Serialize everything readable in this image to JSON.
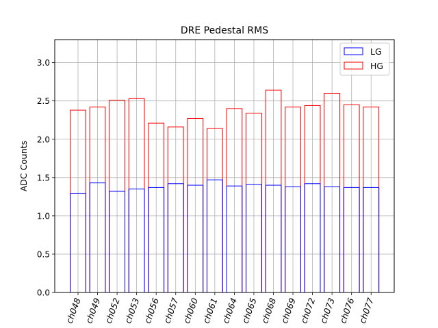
{
  "chart_data": {
    "type": "bar",
    "title": "DRE Pedestal RMS",
    "xlabel": "",
    "ylabel": "ADC Counts",
    "ylim": [
      0,
      3.3
    ],
    "yticks": [
      "0.0",
      "0.5",
      "1.0",
      "1.5",
      "2.0",
      "2.5",
      "3.0"
    ],
    "grid": true,
    "legend_position": "top-right",
    "categories": [
      "ch048",
      "ch049",
      "ch052",
      "ch053",
      "ch056",
      "ch057",
      "ch060",
      "ch061",
      "ch064",
      "ch065",
      "ch068",
      "ch069",
      "ch072",
      "ch073",
      "ch076",
      "ch077"
    ],
    "series": [
      {
        "name": "LG",
        "color": "#0000ff",
        "values": [
          1.29,
          1.43,
          1.32,
          1.35,
          1.37,
          1.42,
          1.4,
          1.47,
          1.39,
          1.41,
          1.4,
          1.38,
          1.42,
          1.38,
          1.37,
          1.37
        ]
      },
      {
        "name": "HG",
        "color": "#ff0000",
        "values": [
          2.38,
          2.42,
          2.51,
          2.53,
          2.21,
          2.16,
          2.27,
          2.14,
          2.4,
          2.34,
          2.64,
          2.42,
          2.44,
          2.6,
          2.45,
          2.42
        ]
      }
    ]
  }
}
